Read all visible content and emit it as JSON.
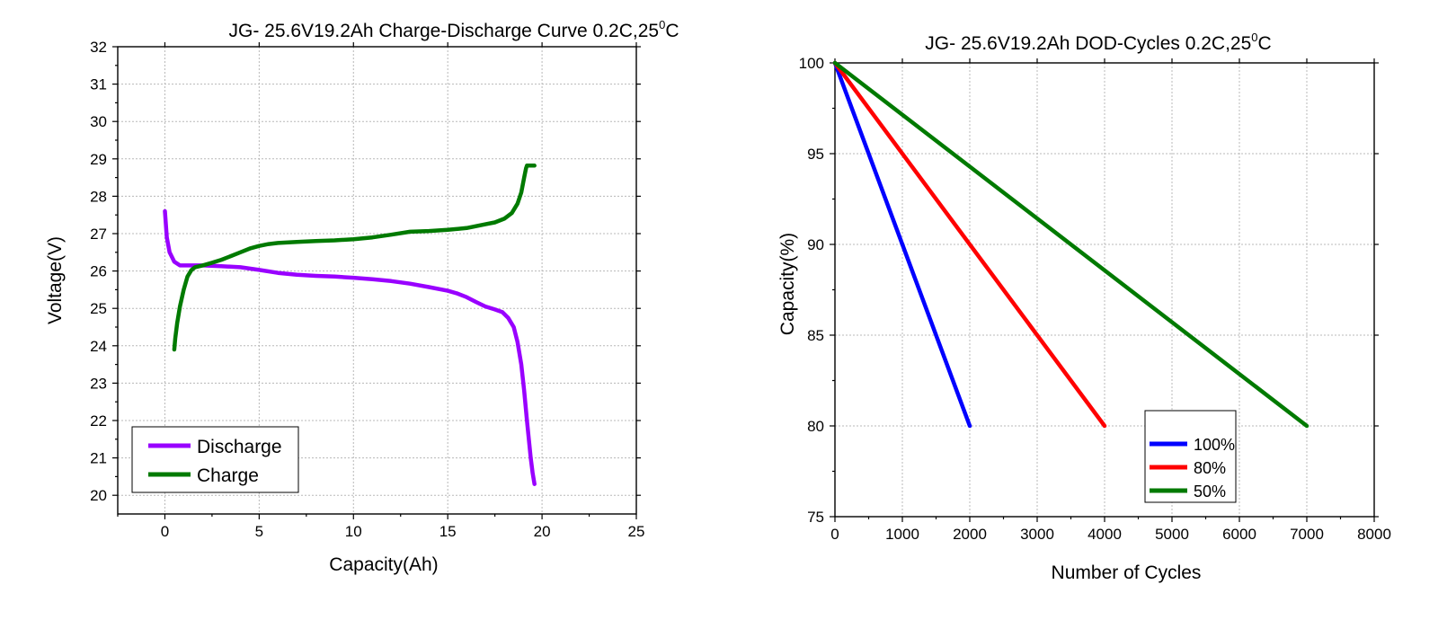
{
  "chart_data": [
    {
      "type": "line",
      "title": {
        "main": "JG- 25.6V19.2Ah Charge-Discharge Curve  0.2C,25",
        "sup": "0",
        "suffix": "C"
      },
      "xlabel": "Capacity(Ah)",
      "ylabel": "Voltage(V)",
      "xlim": [
        -2.5,
        25
      ],
      "ylim": [
        19.5,
        32
      ],
      "x_ticks": [
        0,
        5,
        10,
        15,
        20,
        25
      ],
      "y_ticks": [
        20,
        21,
        22,
        23,
        24,
        25,
        26,
        27,
        28,
        29,
        30,
        31,
        32
      ],
      "grid": true,
      "legend_position": "bottom-left",
      "series": [
        {
          "name": "Discharge",
          "color": "#9900ff",
          "x": [
            0,
            0.1,
            0.25,
            0.5,
            0.8,
            1.2,
            2,
            3,
            4,
            5,
            6,
            7,
            8,
            9,
            10,
            11,
            12,
            13,
            14,
            15,
            15.5,
            16,
            16.5,
            17,
            17.5,
            17.9,
            18.2,
            18.5,
            18.7,
            18.9,
            19.05,
            19.2,
            19.3,
            19.4,
            19.5,
            19.6
          ],
          "y": [
            27.6,
            26.9,
            26.5,
            26.25,
            26.15,
            26.15,
            26.15,
            26.13,
            26.1,
            26.03,
            25.95,
            25.9,
            25.87,
            25.85,
            25.82,
            25.78,
            25.73,
            25.66,
            25.57,
            25.47,
            25.4,
            25.3,
            25.17,
            25.05,
            24.97,
            24.9,
            24.75,
            24.5,
            24.1,
            23.5,
            22.8,
            22.0,
            21.5,
            21.0,
            20.6,
            20.3
          ]
        },
        {
          "name": "Charge",
          "color": "#007a00",
          "x": [
            0.5,
            0.55,
            0.65,
            0.8,
            1.0,
            1.2,
            1.4,
            1.6,
            2.0,
            2.5,
            3,
            3.5,
            4,
            4.5,
            5,
            5.5,
            6,
            7,
            8,
            9,
            10,
            11,
            12,
            13,
            14,
            15,
            16,
            17,
            17.5,
            18,
            18.4,
            18.7,
            18.9,
            19.05,
            19.15,
            19.2,
            19.3,
            19.5,
            19.6
          ],
          "y": [
            23.9,
            24.2,
            24.6,
            25.05,
            25.5,
            25.85,
            26.02,
            26.1,
            26.15,
            26.22,
            26.3,
            26.4,
            26.5,
            26.6,
            26.67,
            26.72,
            26.75,
            26.78,
            26.8,
            26.82,
            26.85,
            26.9,
            26.97,
            27.05,
            27.07,
            27.1,
            27.15,
            27.25,
            27.3,
            27.4,
            27.55,
            27.8,
            28.1,
            28.5,
            28.75,
            28.82,
            28.82,
            28.82,
            28.82
          ]
        }
      ]
    },
    {
      "type": "line",
      "title": {
        "main": "JG- 25.6V19.2Ah DOD-Cycles  0.2C,25",
        "sup": "0",
        "suffix": "C"
      },
      "xlabel": "Number of Cycles",
      "ylabel": "Capacity(%)",
      "xlim": [
        0,
        8000
      ],
      "ylim": [
        75,
        100
      ],
      "x_ticks": [
        0,
        1000,
        2000,
        3000,
        4000,
        5000,
        6000,
        7000,
        8000
      ],
      "y_ticks": [
        75,
        80,
        85,
        90,
        95,
        100
      ],
      "grid": true,
      "legend_position": "bottom-center",
      "series": [
        {
          "name": "100%",
          "color": "#0000ff",
          "x": [
            0,
            2000
          ],
          "y": [
            100,
            80
          ]
        },
        {
          "name": "80%",
          "color": "#ff0000",
          "x": [
            0,
            4000
          ],
          "y": [
            100,
            80
          ]
        },
        {
          "name": "50%",
          "color": "#007a00",
          "x": [
            0,
            7000
          ],
          "y": [
            100,
            80
          ]
        }
      ]
    }
  ]
}
